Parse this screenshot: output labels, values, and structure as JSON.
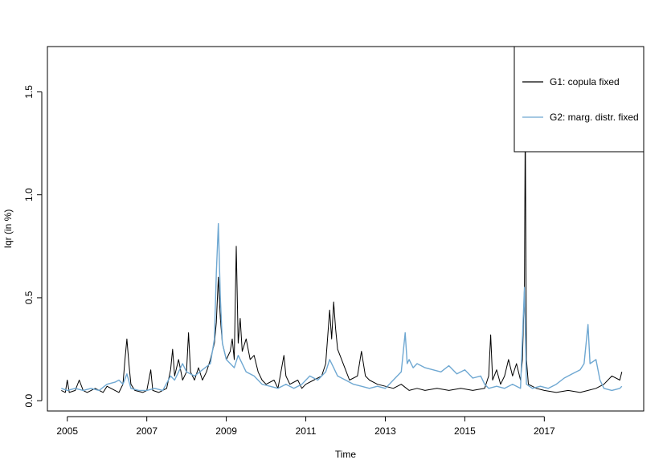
{
  "chart_data": {
    "type": "line",
    "title": "",
    "xlabel": "Time",
    "ylabel": "Iqr (in %)",
    "xlim": [
      2004.5,
      2019.5
    ],
    "ylim": [
      -0.05,
      1.72
    ],
    "x_ticks": [
      2005,
      2007,
      2009,
      2011,
      2013,
      2015,
      2017
    ],
    "y_ticks": [
      0.0,
      0.5,
      1.0,
      1.5
    ],
    "y_tick_labels": [
      "0.0",
      "0.5",
      "1.0",
      "1.5"
    ],
    "grid": false,
    "legend_position": "top-right",
    "series": [
      {
        "name": "G1: copula fixed",
        "color": "#000000",
        "points": [
          [
            2004.85,
            0.05
          ],
          [
            2004.95,
            0.04
          ],
          [
            2005.0,
            0.1
          ],
          [
            2005.05,
            0.04
          ],
          [
            2005.2,
            0.05
          ],
          [
            2005.3,
            0.1
          ],
          [
            2005.4,
            0.05
          ],
          [
            2005.5,
            0.04
          ],
          [
            2005.7,
            0.06
          ],
          [
            2005.9,
            0.04
          ],
          [
            2006.0,
            0.07
          ],
          [
            2006.2,
            0.05
          ],
          [
            2006.3,
            0.04
          ],
          [
            2006.4,
            0.08
          ],
          [
            2006.45,
            0.2
          ],
          [
            2006.5,
            0.3
          ],
          [
            2006.55,
            0.18
          ],
          [
            2006.6,
            0.08
          ],
          [
            2006.7,
            0.05
          ],
          [
            2006.9,
            0.04
          ],
          [
            2007.0,
            0.05
          ],
          [
            2007.1,
            0.15
          ],
          [
            2007.15,
            0.05
          ],
          [
            2007.3,
            0.04
          ],
          [
            2007.5,
            0.06
          ],
          [
            2007.6,
            0.15
          ],
          [
            2007.65,
            0.25
          ],
          [
            2007.7,
            0.12
          ],
          [
            2007.8,
            0.2
          ],
          [
            2007.9,
            0.1
          ],
          [
            2008.0,
            0.14
          ],
          [
            2008.05,
            0.33
          ],
          [
            2008.1,
            0.14
          ],
          [
            2008.2,
            0.1
          ],
          [
            2008.3,
            0.16
          ],
          [
            2008.4,
            0.1
          ],
          [
            2008.5,
            0.14
          ],
          [
            2008.6,
            0.2
          ],
          [
            2008.7,
            0.28
          ],
          [
            2008.75,
            0.38
          ],
          [
            2008.8,
            0.6
          ],
          [
            2008.85,
            0.4
          ],
          [
            2008.9,
            0.28
          ],
          [
            2009.0,
            0.2
          ],
          [
            2009.1,
            0.24
          ],
          [
            2009.15,
            0.3
          ],
          [
            2009.2,
            0.2
          ],
          [
            2009.25,
            0.75
          ],
          [
            2009.3,
            0.28
          ],
          [
            2009.35,
            0.4
          ],
          [
            2009.4,
            0.24
          ],
          [
            2009.5,
            0.3
          ],
          [
            2009.6,
            0.2
          ],
          [
            2009.7,
            0.22
          ],
          [
            2009.8,
            0.14
          ],
          [
            2009.9,
            0.1
          ],
          [
            2010.0,
            0.08
          ],
          [
            2010.2,
            0.1
          ],
          [
            2010.3,
            0.06
          ],
          [
            2010.45,
            0.22
          ],
          [
            2010.5,
            0.12
          ],
          [
            2010.6,
            0.08
          ],
          [
            2010.8,
            0.1
          ],
          [
            2010.9,
            0.06
          ],
          [
            2011.0,
            0.08
          ],
          [
            2011.2,
            0.1
          ],
          [
            2011.4,
            0.12
          ],
          [
            2011.5,
            0.18
          ],
          [
            2011.6,
            0.44
          ],
          [
            2011.65,
            0.3
          ],
          [
            2011.7,
            0.48
          ],
          [
            2011.75,
            0.35
          ],
          [
            2011.8,
            0.25
          ],
          [
            2011.9,
            0.2
          ],
          [
            2012.0,
            0.15
          ],
          [
            2012.1,
            0.1
          ],
          [
            2012.3,
            0.12
          ],
          [
            2012.4,
            0.24
          ],
          [
            2012.5,
            0.12
          ],
          [
            2012.6,
            0.1
          ],
          [
            2012.8,
            0.08
          ],
          [
            2013.0,
            0.07
          ],
          [
            2013.2,
            0.06
          ],
          [
            2013.4,
            0.08
          ],
          [
            2013.6,
            0.05
          ],
          [
            2013.8,
            0.06
          ],
          [
            2014.0,
            0.05
          ],
          [
            2014.3,
            0.06
          ],
          [
            2014.6,
            0.05
          ],
          [
            2014.9,
            0.06
          ],
          [
            2015.2,
            0.05
          ],
          [
            2015.5,
            0.06
          ],
          [
            2015.6,
            0.12
          ],
          [
            2015.65,
            0.32
          ],
          [
            2015.7,
            0.1
          ],
          [
            2015.8,
            0.15
          ],
          [
            2015.9,
            0.08
          ],
          [
            2016.0,
            0.12
          ],
          [
            2016.1,
            0.2
          ],
          [
            2016.2,
            0.12
          ],
          [
            2016.3,
            0.18
          ],
          [
            2016.4,
            0.1
          ],
          [
            2016.45,
            0.2
          ],
          [
            2016.5,
            0.55
          ],
          [
            2016.52,
            1.38
          ],
          [
            2016.55,
            0.2
          ],
          [
            2016.6,
            0.08
          ],
          [
            2016.8,
            0.06
          ],
          [
            2017.0,
            0.05
          ],
          [
            2017.3,
            0.04
          ],
          [
            2017.6,
            0.05
          ],
          [
            2017.9,
            0.04
          ],
          [
            2018.1,
            0.05
          ],
          [
            2018.3,
            0.06
          ],
          [
            2018.5,
            0.08
          ],
          [
            2018.7,
            0.12
          ],
          [
            2018.9,
            0.1
          ],
          [
            2018.95,
            0.14
          ]
        ]
      },
      {
        "name": "G2: marg. distr. fixed",
        "color": "#6fa8d2",
        "points": [
          [
            2004.85,
            0.06
          ],
          [
            2005.0,
            0.05
          ],
          [
            2005.2,
            0.06
          ],
          [
            2005.4,
            0.05
          ],
          [
            2005.6,
            0.06
          ],
          [
            2005.8,
            0.05
          ],
          [
            2006.0,
            0.08
          ],
          [
            2006.2,
            0.09
          ],
          [
            2006.3,
            0.1
          ],
          [
            2006.4,
            0.08
          ],
          [
            2006.5,
            0.13
          ],
          [
            2006.6,
            0.06
          ],
          [
            2006.8,
            0.05
          ],
          [
            2007.0,
            0.05
          ],
          [
            2007.2,
            0.06
          ],
          [
            2007.4,
            0.05
          ],
          [
            2007.6,
            0.12
          ],
          [
            2007.7,
            0.1
          ],
          [
            2007.8,
            0.14
          ],
          [
            2007.9,
            0.18
          ],
          [
            2008.0,
            0.14
          ],
          [
            2008.2,
            0.12
          ],
          [
            2008.4,
            0.15
          ],
          [
            2008.6,
            0.18
          ],
          [
            2008.7,
            0.3
          ],
          [
            2008.75,
            0.62
          ],
          [
            2008.8,
            0.86
          ],
          [
            2008.85,
            0.5
          ],
          [
            2008.9,
            0.28
          ],
          [
            2009.0,
            0.2
          ],
          [
            2009.2,
            0.16
          ],
          [
            2009.3,
            0.22
          ],
          [
            2009.5,
            0.14
          ],
          [
            2009.7,
            0.12
          ],
          [
            2009.9,
            0.08
          ],
          [
            2010.1,
            0.07
          ],
          [
            2010.3,
            0.06
          ],
          [
            2010.5,
            0.08
          ],
          [
            2010.7,
            0.06
          ],
          [
            2010.9,
            0.08
          ],
          [
            2011.1,
            0.12
          ],
          [
            2011.3,
            0.1
          ],
          [
            2011.5,
            0.14
          ],
          [
            2011.6,
            0.2
          ],
          [
            2011.7,
            0.16
          ],
          [
            2011.8,
            0.12
          ],
          [
            2012.0,
            0.1
          ],
          [
            2012.2,
            0.08
          ],
          [
            2012.4,
            0.07
          ],
          [
            2012.6,
            0.06
          ],
          [
            2012.8,
            0.07
          ],
          [
            2013.0,
            0.06
          ],
          [
            2013.2,
            0.1
          ],
          [
            2013.4,
            0.14
          ],
          [
            2013.5,
            0.33
          ],
          [
            2013.55,
            0.18
          ],
          [
            2013.6,
            0.2
          ],
          [
            2013.7,
            0.16
          ],
          [
            2013.8,
            0.18
          ],
          [
            2014.0,
            0.16
          ],
          [
            2014.2,
            0.15
          ],
          [
            2014.4,
            0.14
          ],
          [
            2014.6,
            0.17
          ],
          [
            2014.8,
            0.13
          ],
          [
            2015.0,
            0.15
          ],
          [
            2015.2,
            0.11
          ],
          [
            2015.4,
            0.12
          ],
          [
            2015.5,
            0.08
          ],
          [
            2015.6,
            0.06
          ],
          [
            2015.8,
            0.07
          ],
          [
            2016.0,
            0.06
          ],
          [
            2016.2,
            0.08
          ],
          [
            2016.4,
            0.06
          ],
          [
            2016.5,
            0.55
          ],
          [
            2016.55,
            0.08
          ],
          [
            2016.7,
            0.06
          ],
          [
            2016.9,
            0.07
          ],
          [
            2017.1,
            0.06
          ],
          [
            2017.3,
            0.08
          ],
          [
            2017.5,
            0.11
          ],
          [
            2017.7,
            0.13
          ],
          [
            2017.9,
            0.15
          ],
          [
            2018.0,
            0.18
          ],
          [
            2018.1,
            0.37
          ],
          [
            2018.15,
            0.18
          ],
          [
            2018.3,
            0.2
          ],
          [
            2018.4,
            0.1
          ],
          [
            2018.5,
            0.06
          ],
          [
            2018.7,
            0.05
          ],
          [
            2018.9,
            0.06
          ],
          [
            2018.95,
            0.07
          ]
        ]
      }
    ]
  }
}
